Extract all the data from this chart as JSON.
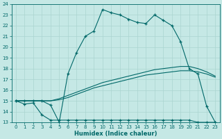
{
  "xlabel": "Humidex (Indice chaleur)",
  "bg_color": "#c5e8e5",
  "grid_color": "#aad4d0",
  "line_color": "#006868",
  "xlim": [
    -0.5,
    23.5
  ],
  "ylim": [
    13,
    24
  ],
  "xticks": [
    0,
    1,
    2,
    3,
    4,
    5,
    6,
    7,
    8,
    9,
    10,
    11,
    12,
    13,
    14,
    15,
    16,
    17,
    18,
    19,
    20,
    21,
    22,
    23
  ],
  "yticks": [
    13,
    14,
    15,
    16,
    17,
    18,
    19,
    20,
    21,
    22,
    23,
    24
  ],
  "curve_max_x": [
    0,
    1,
    2,
    3,
    4,
    5,
    6,
    7,
    8,
    9,
    10,
    11,
    12,
    13,
    14,
    15,
    16,
    17,
    18,
    19,
    20,
    21,
    22,
    23
  ],
  "curve_max_y": [
    15.0,
    15.0,
    15.0,
    15.0,
    14.6,
    13.0,
    17.5,
    19.5,
    21.0,
    21.5,
    23.5,
    23.2,
    23.0,
    22.6,
    22.3,
    22.2,
    23.0,
    22.5,
    22.0,
    20.5,
    18.0,
    17.5,
    14.5,
    13.0
  ],
  "curve_min_x": [
    0,
    1,
    2,
    3,
    4,
    5,
    6,
    7,
    8,
    9,
    10,
    11,
    12,
    13,
    14,
    15,
    16,
    17,
    18,
    19,
    20,
    21,
    22,
    23
  ],
  "curve_min_y": [
    15.0,
    14.7,
    14.8,
    13.7,
    13.2,
    13.2,
    13.2,
    13.2,
    13.2,
    13.2,
    13.2,
    13.2,
    13.2,
    13.2,
    13.2,
    13.2,
    13.2,
    13.2,
    13.2,
    13.2,
    13.2,
    13.0,
    13.0,
    13.0
  ],
  "curve_avg_x": [
    0,
    1,
    2,
    3,
    4,
    5,
    6,
    7,
    8,
    9,
    10,
    11,
    12,
    13,
    14,
    15,
    16,
    17,
    18,
    19,
    20,
    21,
    22,
    23
  ],
  "curve_avg_y": [
    15.0,
    15.0,
    15.0,
    15.0,
    15.0,
    15.1,
    15.3,
    15.6,
    15.9,
    16.2,
    16.4,
    16.6,
    16.8,
    17.0,
    17.2,
    17.4,
    17.5,
    17.6,
    17.7,
    17.8,
    17.8,
    17.7,
    17.5,
    17.2
  ],
  "curve_avg2_x": [
    0,
    1,
    2,
    3,
    4,
    5,
    6,
    7,
    8,
    9,
    10,
    11,
    12,
    13,
    14,
    15,
    16,
    17,
    18,
    19,
    20,
    21,
    22,
    23
  ],
  "curve_avg2_y": [
    15.0,
    15.0,
    15.0,
    15.0,
    15.0,
    15.2,
    15.5,
    15.8,
    16.1,
    16.4,
    16.7,
    16.9,
    17.1,
    17.3,
    17.5,
    17.7,
    17.9,
    18.0,
    18.1,
    18.2,
    18.2,
    18.0,
    17.7,
    17.3
  ]
}
